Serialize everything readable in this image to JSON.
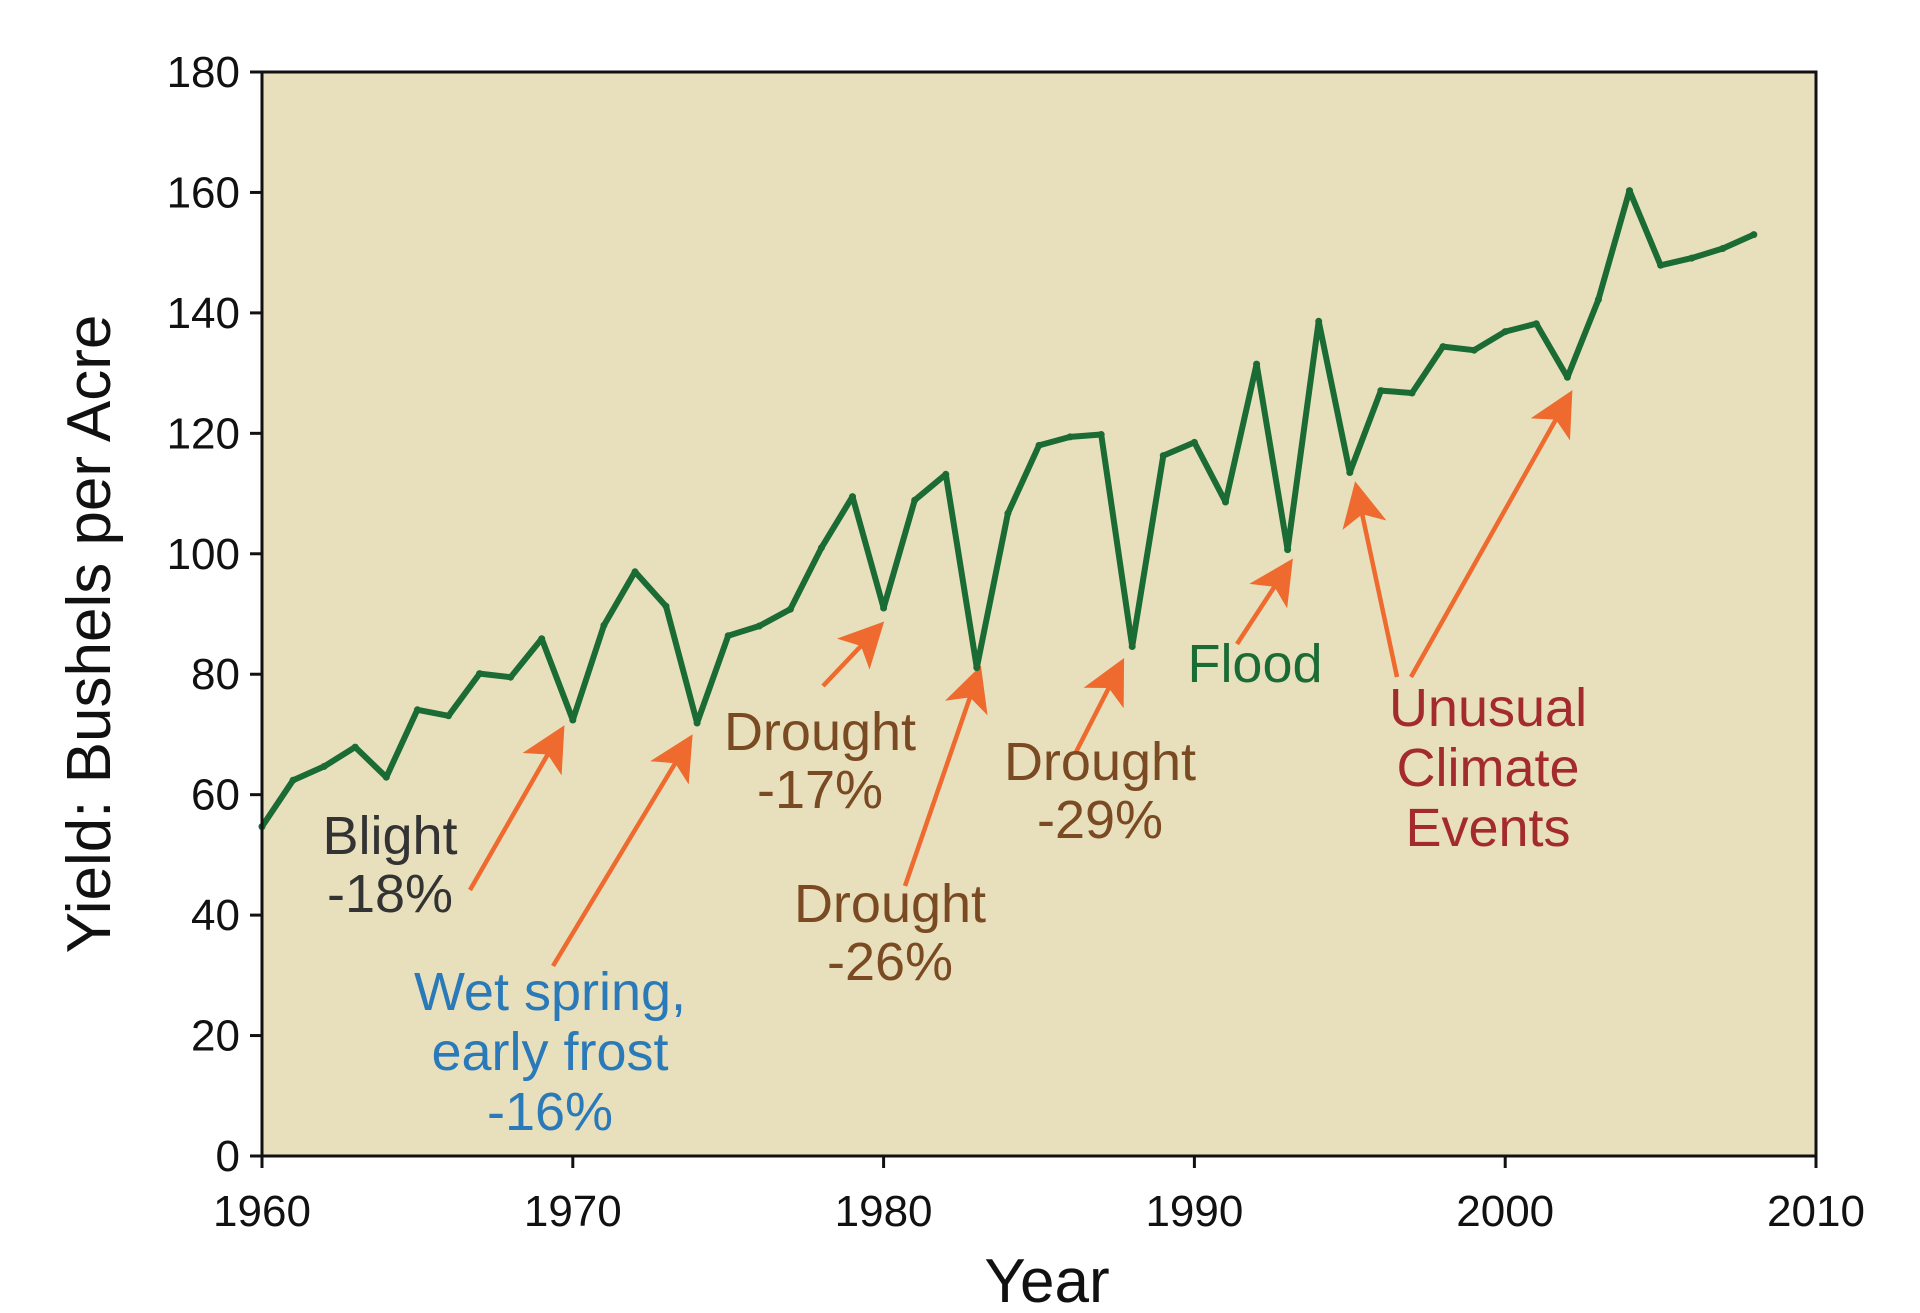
{
  "chart_data": {
    "type": "line",
    "title": "",
    "xlabel": "Year",
    "ylabel": "Yield: Bushels per Acre",
    "xlim": [
      1960,
      2010
    ],
    "ylim": [
      0,
      180
    ],
    "xticks": [
      "1960",
      "1970",
      "1980",
      "1990",
      "2000",
      "2010"
    ],
    "yticks": [
      "0",
      "20",
      "40",
      "60",
      "80",
      "100",
      "120",
      "140",
      "160",
      "180"
    ],
    "grid": false,
    "legend": "none",
    "plot_background": "#e8e0bd",
    "series": [
      {
        "color": "#1b6b35",
        "x": [
          1960,
          1961,
          1962,
          1963,
          1964,
          1965,
          1966,
          1967,
          1968,
          1969,
          1970,
          1971,
          1972,
          1973,
          1974,
          1975,
          1976,
          1977,
          1978,
          1979,
          1980,
          1981,
          1982,
          1983,
          1984,
          1985,
          1986,
          1987,
          1988,
          1989,
          1990,
          1991,
          1992,
          1993,
          1994,
          1995,
          1996,
          1997,
          1998,
          1999,
          2000,
          2001,
          2002,
          2003,
          2004,
          2005,
          2006,
          2007,
          2008
        ],
        "y": [
          54.7,
          62.4,
          64.7,
          67.9,
          62.9,
          74.1,
          73.1,
          80.1,
          79.5,
          85.9,
          72.4,
          88.1,
          97.0,
          91.3,
          71.9,
          86.4,
          88.0,
          90.8,
          101.0,
          109.5,
          91.0,
          108.9,
          113.2,
          81.1,
          106.7,
          118.0,
          119.4,
          119.8,
          84.6,
          116.3,
          118.5,
          108.6,
          131.5,
          100.7,
          138.6,
          113.5,
          127.1,
          126.7,
          134.4,
          133.8,
          136.9,
          138.2,
          129.3,
          142.2,
          160.3,
          147.9,
          149.1,
          150.7,
          153.0
        ]
      }
    ],
    "annotations": [
      {
        "lines": [
          "Blight",
          "-18%"
        ],
        "color": "#333333",
        "target_year": 1970,
        "target_value": 72.4
      },
      {
        "lines": [
          "Wet spring,",
          "early frost",
          "-16%"
        ],
        "color": "#2a79b8",
        "target_year": 1974,
        "target_value": 71.9
      },
      {
        "lines": [
          "Drought",
          "-17%"
        ],
        "color": "#7a4a22",
        "target_year": 1980,
        "target_value": 91.0
      },
      {
        "lines": [
          "Drought",
          "-26%"
        ],
        "color": "#7a4a22",
        "target_year": 1983,
        "target_value": 81.1
      },
      {
        "lines": [
          "Drought",
          "-29%"
        ],
        "color": "#7a4a22",
        "target_year": 1988,
        "target_value": 84.6
      },
      {
        "lines": [
          "Flood"
        ],
        "color": "#1b6b35",
        "target_year": 1993,
        "target_value": 100.7
      },
      {
        "lines": [
          "Unusual",
          "Climate",
          "Events"
        ],
        "color": "#a32b2b",
        "target_year": 1995,
        "target_value": 113.5
      },
      {
        "lines": [],
        "color": "#a32b2b",
        "target_year": 2002,
        "target_value": 129.3
      }
    ],
    "arrow_color": "#ee6a2e"
  }
}
